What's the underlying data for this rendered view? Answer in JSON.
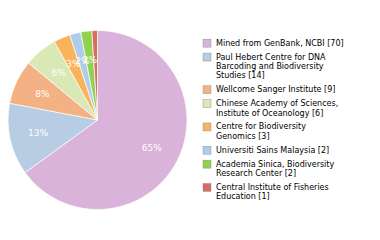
{
  "chart_data": {
    "type": "pie",
    "categories": [
      "Mined from GenBank, NCBI [70]",
      "Paul Hebert Centre for DNA\nBarcoding and Biodiversity\nStudies [14]",
      "Wellcome Sanger Institute [9]",
      "Chinese Academy of Sciences,\nInstitute of Oceanology [6]",
      "Centre for Biodiversity\nGenomics [3]",
      "Universiti Sains Malaysia [2]",
      "Academia Sinica, Biodiversity\nResearch Center [2]",
      "Central Institute of Fisheries\nEducation [1]"
    ],
    "values": [
      65,
      13,
      8,
      6,
      3,
      2,
      2,
      1
    ],
    "value_labels": [
      "65%",
      "13%",
      "8%",
      "6%",
      "3%",
      "2%",
      "2%",
      null
    ],
    "colors": [
      "#d9b3d9",
      "#b8cce4",
      "#f4b183",
      "#d9e8b4",
      "#f9b45a",
      "#aecde8",
      "#92d050",
      "#d96b60"
    ],
    "data_labels": true,
    "legend": "right"
  }
}
